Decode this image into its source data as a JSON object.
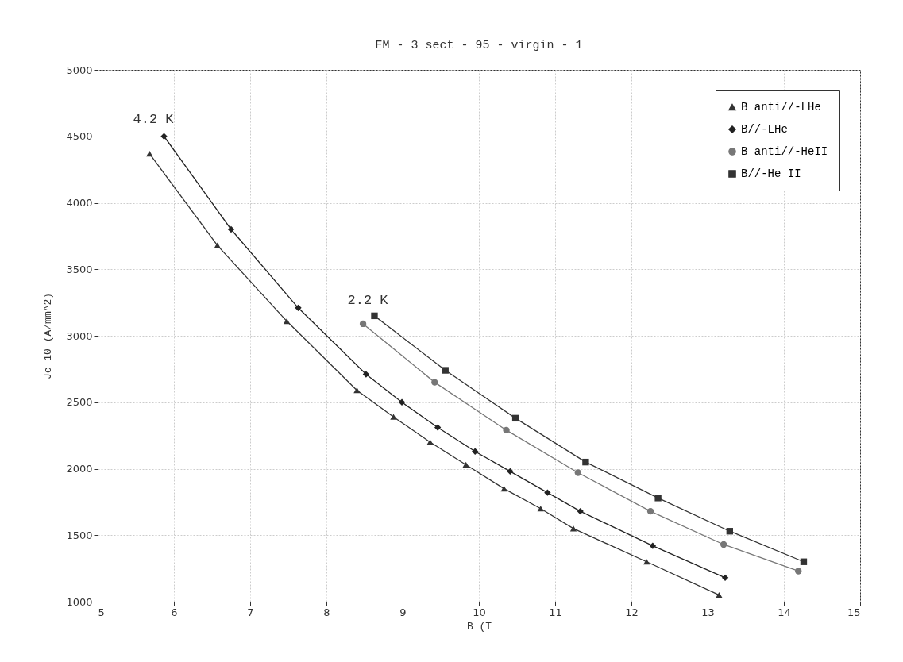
{
  "chart_data": {
    "type": "line",
    "title": "EM - 3 sect - 95 - virgin - 1",
    "xlabel": "B (T",
    "ylabel": "Jc 10 (A/mm^2)",
    "xlim": [
      5,
      15
    ],
    "xticks": [
      5,
      6,
      7,
      8,
      9,
      10,
      11,
      12,
      13,
      14,
      15
    ],
    "ylim": [
      1000,
      5000
    ],
    "yticks": [
      1000,
      1500,
      2000,
      2500,
      3000,
      3500,
      4000,
      4500,
      5000
    ],
    "grid": true,
    "legend": "top right",
    "line_style": "solid",
    "series": [
      {
        "name": "B anti//-LHe",
        "color": "#333333",
        "marker": "triangle",
        "x": [
          5.68,
          6.57,
          7.48,
          8.4,
          8.88,
          9.36,
          9.83,
          10.33,
          10.81,
          11.24,
          12.2,
          13.15
        ],
        "values": [
          4370,
          3680,
          3110,
          2590,
          2390,
          2200,
          2030,
          1850,
          1700,
          1550,
          1300,
          1050
        ]
      },
      {
        "name": "B//-LHe",
        "color": "#222222",
        "marker": "diamond",
        "x": [
          5.87,
          6.75,
          7.63,
          8.52,
          8.99,
          9.46,
          9.95,
          10.41,
          10.9,
          11.33,
          12.28,
          13.23
        ],
        "values": [
          4500,
          3800,
          3210,
          2710,
          2500,
          2310,
          2130,
          1980,
          1820,
          1680,
          1420,
          1180
        ]
      },
      {
        "name": "B anti//-HeII",
        "color": "#777777",
        "marker": "circle",
        "x": [
          8.48,
          9.42,
          10.36,
          11.3,
          12.25,
          13.21,
          14.19
        ],
        "values": [
          3090,
          2650,
          2290,
          1970,
          1680,
          1430,
          1230
        ]
      },
      {
        "name": "B//-He II",
        "color": "#333333",
        "marker": "square",
        "x": [
          8.63,
          9.56,
          10.48,
          11.4,
          12.35,
          13.29,
          14.26
        ],
        "values": [
          3150,
          2740,
          2380,
          2050,
          1780,
          1530,
          1300
        ]
      }
    ],
    "annotations": [
      "4.2 K",
      "2.2 K"
    ]
  }
}
